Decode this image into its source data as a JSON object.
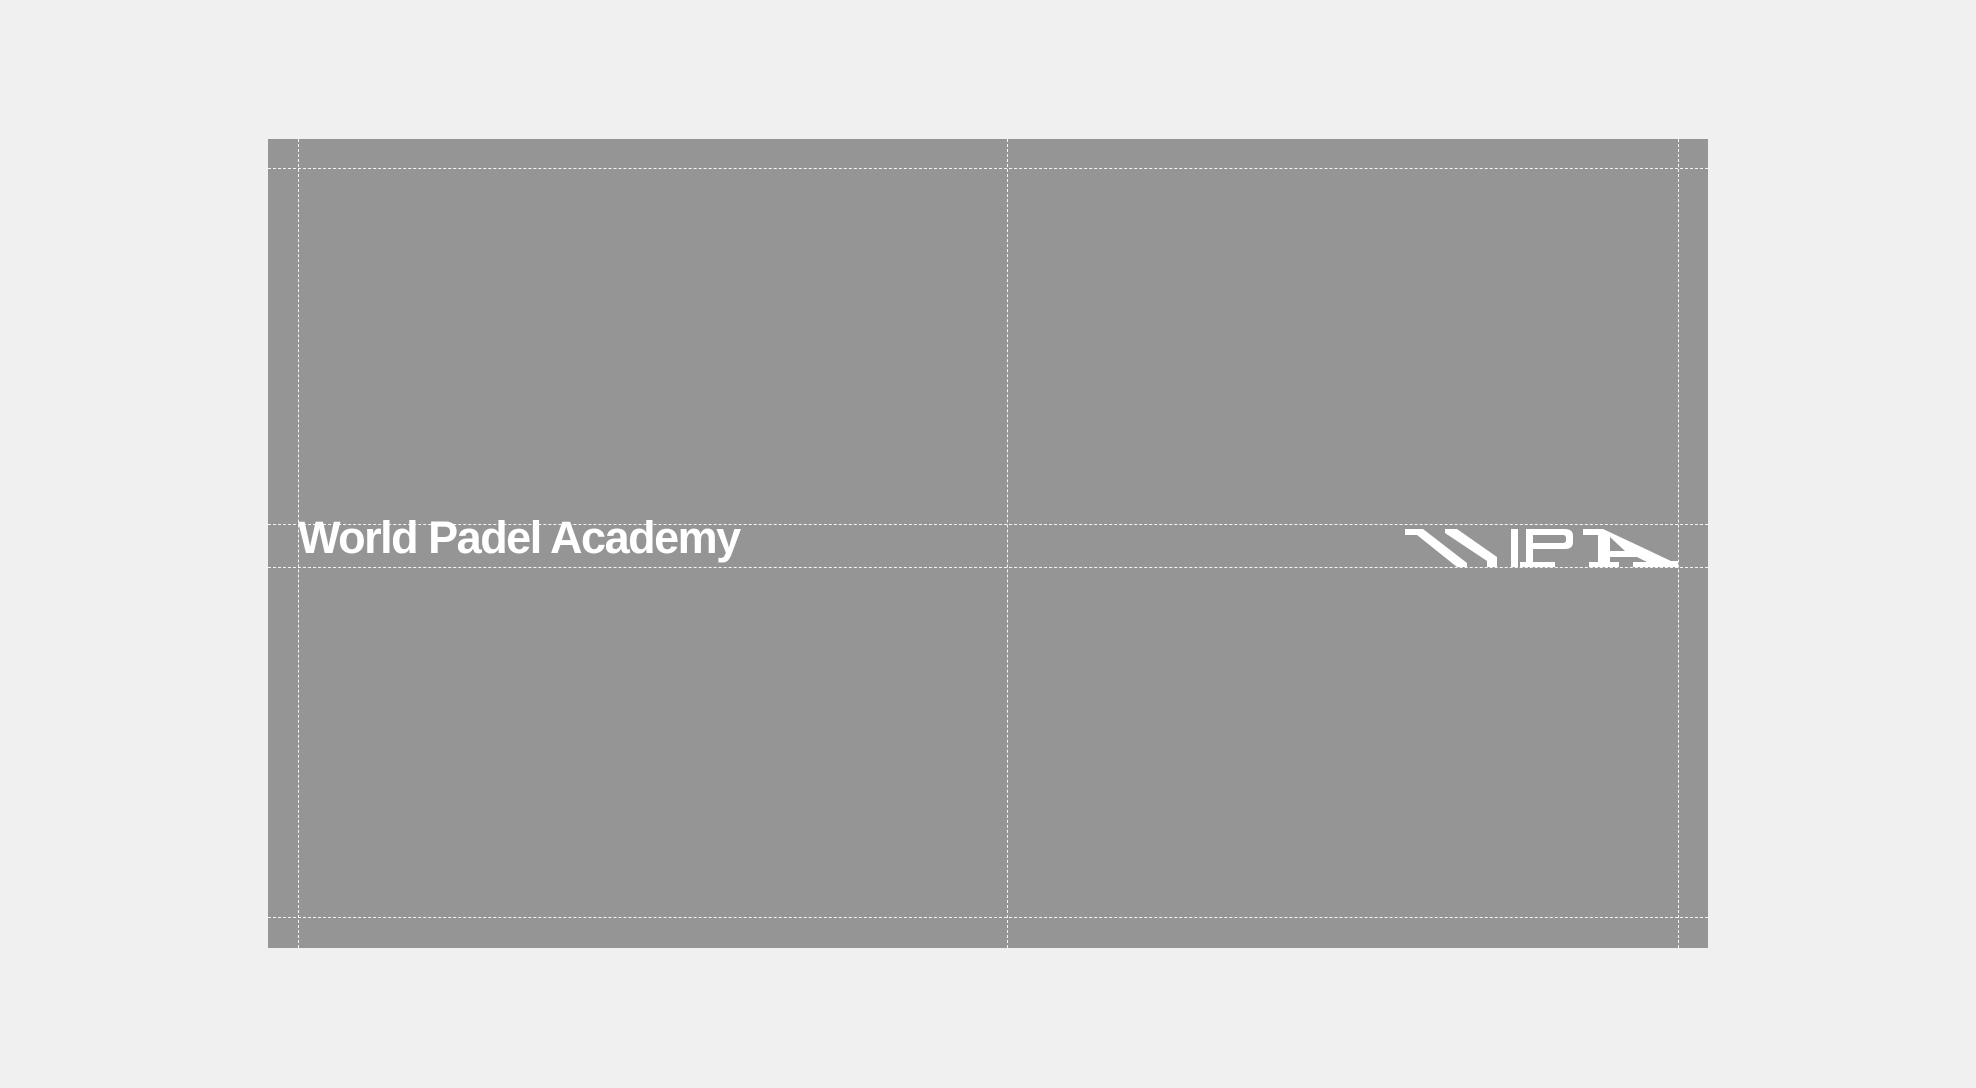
{
  "brand": {
    "wordmark": "World Padel Academy",
    "monogram_text": "WPA",
    "monogram_icon": "wpa-monogram-logo"
  },
  "colors": {
    "page_background": "#f0f0f0",
    "artboard_background": "#959595",
    "foreground": "#ffffff",
    "guide_lines": "#ffffff"
  }
}
